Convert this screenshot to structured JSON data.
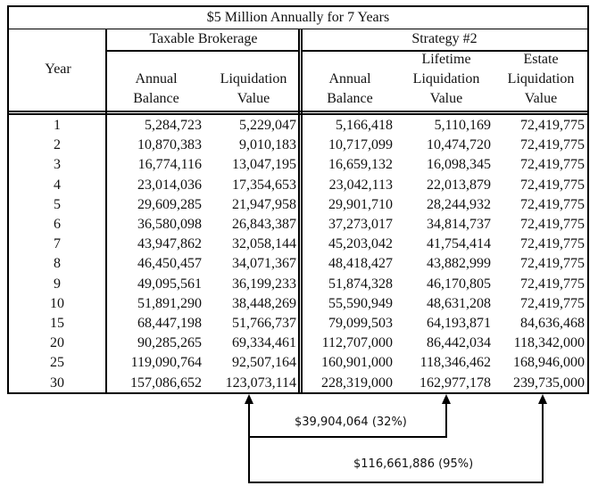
{
  "table": {
    "title": "$5 Million Annually for 7 Years",
    "groups": {
      "taxable": "Taxable Brokerage",
      "strategy": "Strategy #2"
    },
    "headers": {
      "year": "Year",
      "tb_annual_1": "Annual",
      "tb_annual_2": "Balance",
      "tb_liq_1": "Liquidation",
      "tb_liq_2": "Value",
      "s2_annual_1": "Annual",
      "s2_annual_2": "Balance",
      "s2_life_1": "Lifetime",
      "s2_life_2": "Liquidation",
      "s2_life_3": "Value",
      "s2_estate_1": "Estate",
      "s2_estate_2": "Liquidation",
      "s2_estate_3": "Value"
    },
    "rows": [
      {
        "year": "1",
        "tb_annual": "5,284,723",
        "tb_liq": "5,229,047",
        "s2_annual": "5,166,418",
        "s2_life": "5,110,169",
        "s2_estate": "72,419,775"
      },
      {
        "year": "2",
        "tb_annual": "10,870,383",
        "tb_liq": "9,010,183",
        "s2_annual": "10,717,099",
        "s2_life": "10,474,720",
        "s2_estate": "72,419,775"
      },
      {
        "year": "3",
        "tb_annual": "16,774,116",
        "tb_liq": "13,047,195",
        "s2_annual": "16,659,132",
        "s2_life": "16,098,345",
        "s2_estate": "72,419,775"
      },
      {
        "year": "4",
        "tb_annual": "23,014,036",
        "tb_liq": "17,354,653",
        "s2_annual": "23,042,113",
        "s2_life": "22,013,879",
        "s2_estate": "72,419,775"
      },
      {
        "year": "5",
        "tb_annual": "29,609,285",
        "tb_liq": "21,947,958",
        "s2_annual": "29,901,710",
        "s2_life": "28,244,932",
        "s2_estate": "72,419,775"
      },
      {
        "year": "6",
        "tb_annual": "36,580,098",
        "tb_liq": "26,843,387",
        "s2_annual": "37,273,017",
        "s2_life": "34,814,737",
        "s2_estate": "72,419,775"
      },
      {
        "year": "7",
        "tb_annual": "43,947,862",
        "tb_liq": "32,058,144",
        "s2_annual": "45,203,042",
        "s2_life": "41,754,414",
        "s2_estate": "72,419,775"
      },
      {
        "year": "8",
        "tb_annual": "46,450,457",
        "tb_liq": "34,071,367",
        "s2_annual": "48,418,427",
        "s2_life": "43,882,999",
        "s2_estate": "72,419,775"
      },
      {
        "year": "9",
        "tb_annual": "49,095,561",
        "tb_liq": "36,199,233",
        "s2_annual": "51,874,328",
        "s2_life": "46,170,805",
        "s2_estate": "72,419,775"
      },
      {
        "year": "10",
        "tb_annual": "51,891,290",
        "tb_liq": "38,448,269",
        "s2_annual": "55,590,949",
        "s2_life": "48,631,208",
        "s2_estate": "72,419,775"
      },
      {
        "year": "15",
        "tb_annual": "68,447,198",
        "tb_liq": "51,766,737",
        "s2_annual": "79,099,503",
        "s2_life": "64,193,871",
        "s2_estate": "84,636,468"
      },
      {
        "year": "20",
        "tb_annual": "90,285,265",
        "tb_liq": "69,334,461",
        "s2_annual": "112,707,000",
        "s2_life": "86,442,034",
        "s2_estate": "118,342,000"
      },
      {
        "year": "25",
        "tb_annual": "119,090,764",
        "tb_liq": "92,507,164",
        "s2_annual": "160,901,000",
        "s2_life": "118,346,462",
        "s2_estate": "168,946,000"
      },
      {
        "year": "30",
        "tb_annual": "157,086,652",
        "tb_liq": "123,073,114",
        "s2_annual": "228,319,000",
        "s2_life": "162,977,178",
        "s2_estate": "239,735,000"
      }
    ]
  },
  "annotations": {
    "diff_lifetime": "$39,904,064 (32%)",
    "diff_estate": "$116,661,886 (95%)"
  }
}
